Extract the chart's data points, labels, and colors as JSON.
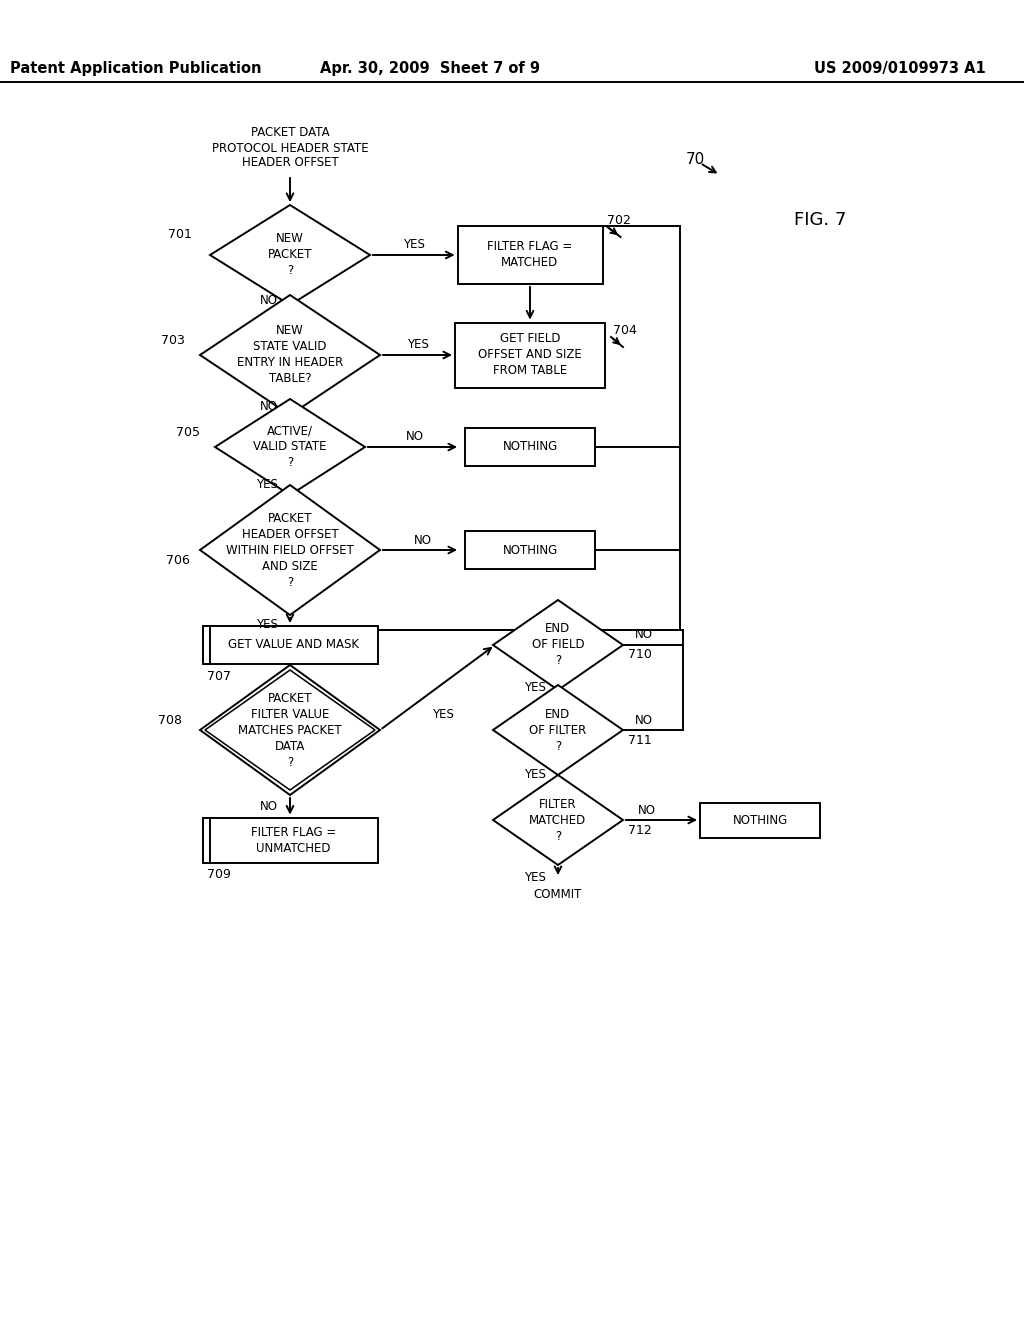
{
  "header_left": "Patent Application Publication",
  "header_mid": "Apr. 30, 2009  Sheet 7 of 9",
  "header_right": "US 2009/0109973 A1",
  "fig_label": "FIG. 7",
  "background": "#ffffff"
}
